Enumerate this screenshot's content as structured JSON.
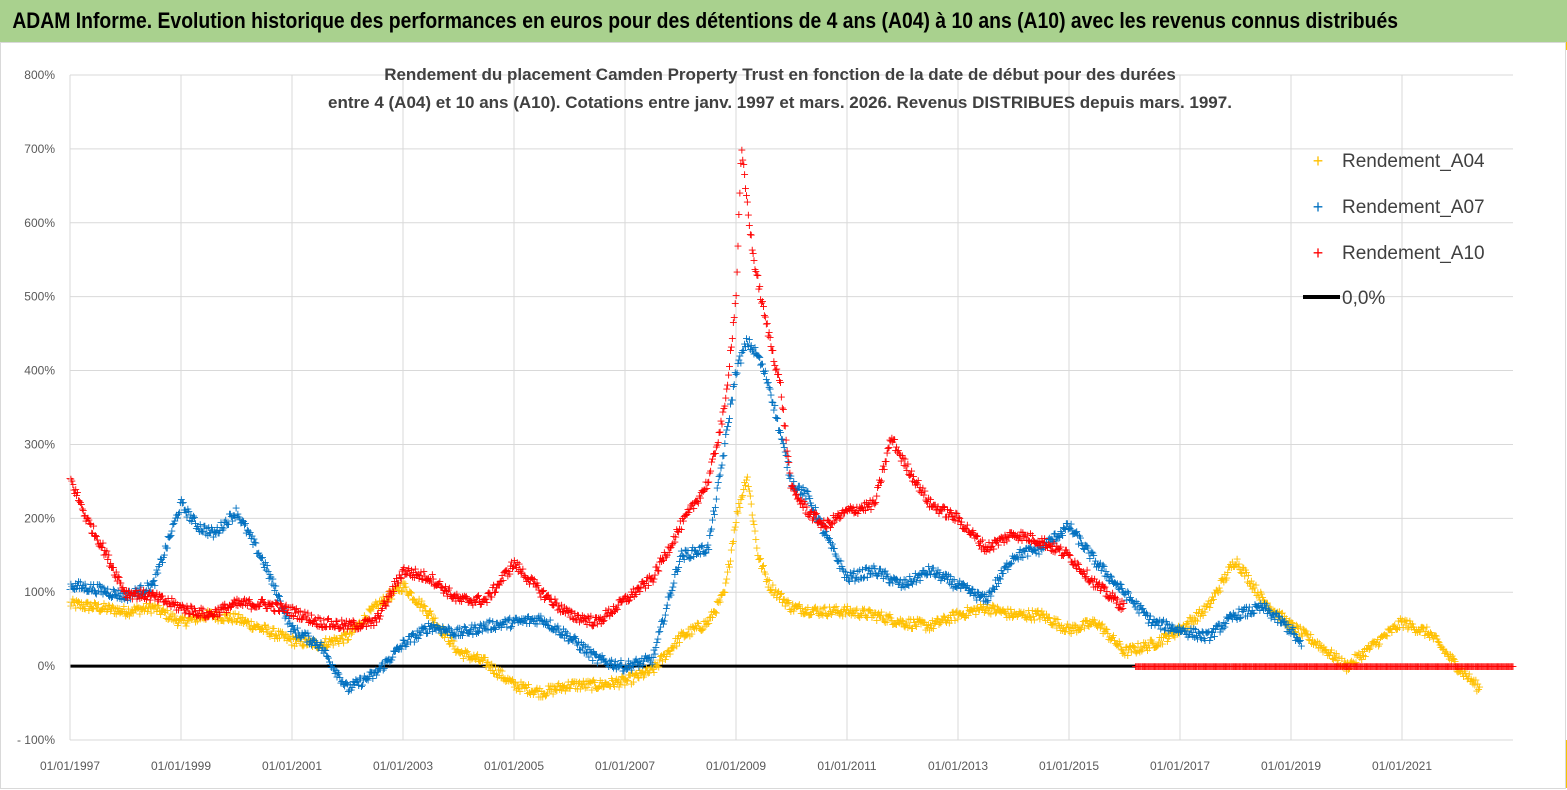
{
  "header": {
    "title": "ADAM Informe. Evolution historique des performances en euros pour des détentions de 4 ans (A04) à 10 ans (A10) avec les revenus connus distribués"
  },
  "colors": {
    "header_bg": "#a9d18e",
    "a04": "#ffc000",
    "a07": "#0070c0",
    "a10": "#ff0000",
    "zero": "#000000",
    "grid": "#d9d9d9"
  },
  "chart_data": {
    "type": "scatter",
    "title_lines": [
      "Rendement du placement Camden Property Trust en fonction de la date de début pour des durées",
      "entre 4 (A04) et 10 ans (A10). Cotations entre janv. 1997 et mars. 2026. Revenus DISTRIBUES depuis mars. 1997."
    ],
    "x_range": [
      1997.0,
      2023.0
    ],
    "ylim": [
      -100,
      800
    ],
    "y_ticks": [
      -100,
      0,
      100,
      200,
      300,
      400,
      500,
      600,
      700,
      800
    ],
    "y_tick_labels": [
      "- 100%",
      "0%",
      "100%",
      "200%",
      "300%",
      "400%",
      "500%",
      "600%",
      "700%",
      "800%"
    ],
    "x_ticks": [
      1997,
      1999,
      2001,
      2003,
      2005,
      2007,
      2009,
      2011,
      2013,
      2015,
      2017,
      2019,
      2021
    ],
    "x_tick_labels": [
      "01/01/1997",
      "01/01/1999",
      "01/01/2001",
      "01/01/2003",
      "01/01/2005",
      "01/01/2007",
      "01/01/2009",
      "01/01/2011",
      "01/01/2013",
      "01/01/2015",
      "01/01/2017",
      "01/01/2019",
      "01/01/2021"
    ],
    "legend": {
      "position": "top-right",
      "items": [
        "Rendement_A04",
        "Rendement_A07",
        "Rendement_A10",
        "0,0%"
      ]
    },
    "series": [
      {
        "name": "Rendement_A04",
        "x": [
          1997.0,
          1997.5,
          1998.0,
          1998.5,
          1999.0,
          1999.5,
          2000.0,
          2000.5,
          2001.0,
          2001.5,
          2002.0,
          2002.5,
          2003.0,
          2003.5,
          2004.0,
          2004.5,
          2005.0,
          2005.5,
          2006.0,
          2006.5,
          2007.0,
          2007.5,
          2008.0,
          2008.5,
          2008.8,
          2009.0,
          2009.2,
          2009.4,
          2009.6,
          2010.0,
          2010.5,
          2011.0,
          2011.5,
          2012.0,
          2012.5,
          2013.0,
          2013.5,
          2014.0,
          2014.5,
          2015.0,
          2015.5,
          2016.0,
          2016.5,
          2017.0,
          2017.5,
          2018.0,
          2018.5,
          2019.0,
          2019.5,
          2020.0,
          2020.5,
          2021.0,
          2021.5,
          2022.0,
          2022.4
        ],
        "y": [
          85,
          80,
          75,
          80,
          60,
          70,
          65,
          50,
          35,
          30,
          40,
          80,
          110,
          70,
          20,
          5,
          -25,
          -35,
          -25,
          -25,
          -20,
          -5,
          40,
          60,
          100,
          200,
          260,
          150,
          110,
          80,
          75,
          75,
          70,
          60,
          55,
          70,
          80,
          70,
          70,
          50,
          60,
          20,
          30,
          50,
          80,
          145,
          90,
          55,
          30,
          0,
          30,
          60,
          45,
          0,
          -30
        ]
      },
      {
        "name": "Rendement_A07",
        "x": [
          1997.0,
          1997.5,
          1998.0,
          1998.5,
          1999.0,
          1999.3,
          1999.6,
          2000.0,
          2000.5,
          2001.0,
          2001.5,
          2002.0,
          2002.5,
          2003.0,
          2003.5,
          2004.0,
          2004.5,
          2005.0,
          2005.5,
          2006.0,
          2006.5,
          2007.0,
          2007.5,
          2008.0,
          2008.5,
          2008.8,
          2009.0,
          2009.2,
          2009.4,
          2009.6,
          2010.0,
          2010.3,
          2010.6,
          2011.0,
          2011.5,
          2012.0,
          2012.5,
          2013.0,
          2013.5,
          2014.0,
          2014.5,
          2015.0,
          2015.5,
          2016.0,
          2016.5,
          2017.0,
          2017.5,
          2018.0,
          2018.5,
          2019.0,
          2019.2
        ],
        "y": [
          110,
          105,
          95,
          110,
          220,
          190,
          180,
          210,
          140,
          50,
          30,
          -30,
          -10,
          30,
          55,
          45,
          55,
          60,
          65,
          40,
          10,
          0,
          10,
          150,
          160,
          300,
          400,
          440,
          420,
          380,
          250,
          230,
          180,
          120,
          130,
          110,
          130,
          110,
          90,
          150,
          160,
          190,
          140,
          100,
          60,
          50,
          40,
          70,
          80,
          50,
          25
        ]
      },
      {
        "name": "Rendement_A10",
        "x": [
          1997.0,
          1997.3,
          1997.6,
          1998.0,
          1998.5,
          1999.0,
          1999.5,
          2000.0,
          2000.5,
          2001.0,
          2001.5,
          2002.0,
          2002.5,
          2003.0,
          2003.5,
          2004.0,
          2004.5,
          2005.0,
          2005.5,
          2006.0,
          2006.5,
          2007.0,
          2007.5,
          2008.0,
          2008.5,
          2008.8,
          2009.0,
          2009.1,
          2009.3,
          2009.5,
          2009.8,
          2010.0,
          2010.3,
          2010.6,
          2011.0,
          2011.5,
          2011.8,
          2012.0,
          2012.5,
          2013.0,
          2013.5,
          2014.0,
          2014.5,
          2015.0,
          2015.5,
          2016.0
        ],
        "y": [
          255,
          200,
          160,
          100,
          95,
          80,
          70,
          85,
          85,
          75,
          60,
          55,
          60,
          130,
          120,
          90,
          90,
          140,
          100,
          70,
          60,
          90,
          120,
          190,
          250,
          350,
          500,
          700,
          560,
          480,
          380,
          240,
          210,
          190,
          210,
          220,
          310,
          280,
          220,
          200,
          160,
          180,
          170,
          150,
          110,
          80
        ]
      },
      {
        "name": "0,0%",
        "x": [
          1997.0,
          2023.0
        ],
        "y": [
          0,
          0
        ]
      }
    ]
  }
}
